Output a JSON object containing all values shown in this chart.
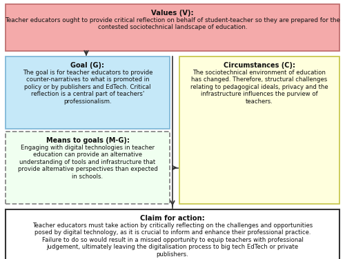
{
  "values_title": "Values (V):",
  "values_text": "Teacher educators ought to provide critical reflection on behalf of student-teacher so they are prepared for the\ncontested sociotechnical landscape of education.",
  "values_color": "#F4AAAA",
  "values_border": "#C07070",
  "goal_title": "Goal (G):",
  "goal_text": "The goal is for teacher educators to provide\ncounter-narratives to what is promoted in\npolicy or by publishers and EdTech. Critical\nreflection is a central part of teachers'\nprofessionalism.",
  "goal_color": "#C5E8F8",
  "goal_border": "#80B8D8",
  "means_title": "Means to goals (M-G):",
  "means_text": "Engaging with digital technologies in teacher\neducation can provide an alternative\nunderstanding of tools and infrastructure that\nprovide alternative perspectives than expected\nin schools.",
  "means_color": "#F0FFF0",
  "means_border": "#888888",
  "circ_title": "Circumstances (C):",
  "circ_text": "The sociotechnical environment of education\nhas changed. Therefore, structural challenges\nrelating to pedagogical ideals, privacy and the\ninfrastructure influences the purview of\nteachers.",
  "circ_color": "#FFFFDD",
  "circ_border": "#C8C850",
  "claim_title": "Claim for action:",
  "claim_text": "Teacher educators must take action by critically reflecting on the challenges and opportunities\nposed by digital technology, as it is crucial to inform and enhance their professional practice.\nFailure to do so would result in a missed opportunity to equip teachers with professional\njudgement, ultimately leaving the digitalisation process to big tech EdTech or private\npublishers.",
  "claim_color": "#FFFFFF",
  "claim_border": "#333333",
  "bg_color": "#FFFFFF",
  "text_color": "#111111",
  "arrow_color": "#333333",
  "fig_width": 5.0,
  "fig_height": 3.76,
  "dpi": 100
}
